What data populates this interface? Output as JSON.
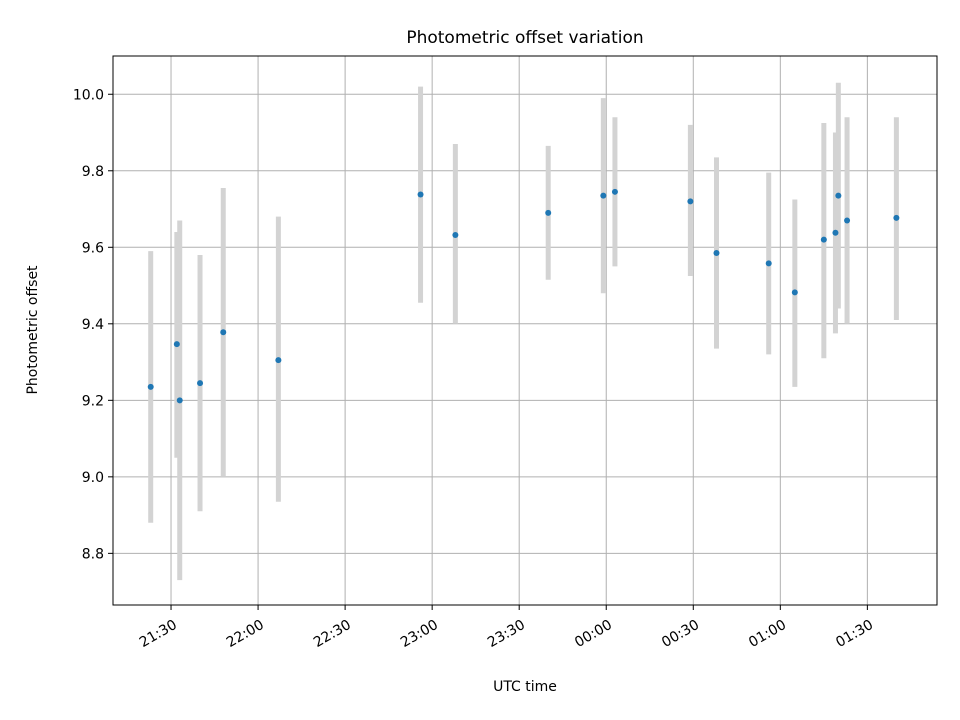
{
  "chart_data": {
    "type": "scatter",
    "title": "Photometric offset variation",
    "xlabel": "UTC time",
    "ylabel": "Photometric offset",
    "grid": true,
    "x_tick_labels": [
      "21:30",
      "22:00",
      "22:30",
      "23:00",
      "23:30",
      "00:00",
      "00:30",
      "01:00",
      "01:30"
    ],
    "x_tick_values": [
      "21:30",
      "22:00",
      "22:30",
      "23:00",
      "23:30",
      "00:00",
      "00:30",
      "01:00",
      "01:30"
    ],
    "xlim": [
      "21:10",
      "01:54"
    ],
    "y_ticks": [
      8.8,
      9.0,
      9.2,
      9.4,
      9.6,
      9.8,
      10.0
    ],
    "ylim": [
      8.665,
      10.1
    ],
    "colors": {
      "marker": "#1f77b4",
      "errorbar": "#d3d3d3",
      "grid": "#b0b0b0"
    },
    "points": [
      {
        "x": "21:23",
        "y": 9.235,
        "ylow": 8.88,
        "yhigh": 9.59
      },
      {
        "x": "21:32",
        "y": 9.347,
        "ylow": 9.05,
        "yhigh": 9.64
      },
      {
        "x": "21:33",
        "y": 9.2,
        "ylow": 8.73,
        "yhigh": 9.67
      },
      {
        "x": "21:40",
        "y": 9.245,
        "ylow": 8.91,
        "yhigh": 9.58
      },
      {
        "x": "21:48",
        "y": 9.378,
        "ylow": 9.0,
        "yhigh": 9.755
      },
      {
        "x": "22:07",
        "y": 9.305,
        "ylow": 8.935,
        "yhigh": 9.68
      },
      {
        "x": "22:56",
        "y": 9.738,
        "ylow": 9.455,
        "yhigh": 10.02
      },
      {
        "x": "23:08",
        "y": 9.632,
        "ylow": 9.4,
        "yhigh": 9.87
      },
      {
        "x": "23:40",
        "y": 9.69,
        "ylow": 9.515,
        "yhigh": 9.865
      },
      {
        "x": "23:59",
        "y": 9.735,
        "ylow": 9.48,
        "yhigh": 9.99
      },
      {
        "x": "00:03",
        "y": 9.745,
        "ylow": 9.55,
        "yhigh": 9.94
      },
      {
        "x": "00:29",
        "y": 9.72,
        "ylow": 9.525,
        "yhigh": 9.92
      },
      {
        "x": "00:38",
        "y": 9.585,
        "ylow": 9.335,
        "yhigh": 9.835
      },
      {
        "x": "00:56",
        "y": 9.558,
        "ylow": 9.32,
        "yhigh": 9.795
      },
      {
        "x": "01:05",
        "y": 9.482,
        "ylow": 9.235,
        "yhigh": 9.725
      },
      {
        "x": "01:15",
        "y": 9.62,
        "ylow": 9.31,
        "yhigh": 9.925
      },
      {
        "x": "01:19",
        "y": 9.638,
        "ylow": 9.375,
        "yhigh": 9.9
      },
      {
        "x": "01:20",
        "y": 9.735,
        "ylow": 9.44,
        "yhigh": 10.03
      },
      {
        "x": "01:23",
        "y": 9.67,
        "ylow": 9.4,
        "yhigh": 9.94
      },
      {
        "x": "01:40",
        "y": 9.677,
        "ylow": 9.41,
        "yhigh": 9.94
      }
    ]
  }
}
